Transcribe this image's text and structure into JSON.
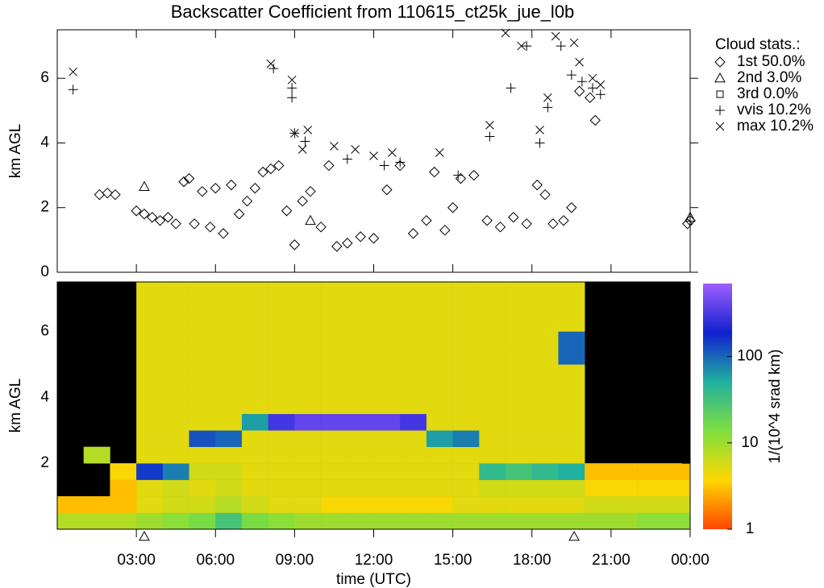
{
  "chart_data": [
    {
      "type": "scatter",
      "title": "Backscatter Coefficient from 110615_ct25k_jue_l0b",
      "ylabel": "km AGL",
      "xlim": [
        0,
        24
      ],
      "ylim": [
        0,
        7.5
      ],
      "yticks": [
        0,
        2,
        4,
        6
      ],
      "legend_title": "Cloud stats.:",
      "legend": "outside-right",
      "series": [
        {
          "name": "1st 50.0%",
          "color": "#000000",
          "marker": "diamond",
          "x": [
            1.6,
            1.9,
            2.2,
            3.0,
            3.3,
            3.6,
            3.9,
            4.2,
            4.5,
            4.8,
            5.0,
            5.2,
            5.5,
            5.8,
            6.0,
            6.3,
            6.6,
            6.9,
            7.2,
            7.5,
            7.8,
            8.1,
            8.4,
            8.7,
            9.0,
            9.3,
            9.6,
            10.0,
            10.3,
            10.6,
            11.0,
            11.5,
            12.0,
            12.5,
            13.0,
            13.5,
            14.0,
            14.3,
            14.7,
            15.0,
            15.3,
            15.8,
            16.3,
            16.8,
            17.3,
            17.8,
            18.2,
            18.5,
            18.8,
            19.2,
            19.5,
            19.8,
            20.2,
            20.4,
            23.9,
            24.0
          ],
          "values": [
            2.4,
            2.45,
            2.4,
            1.9,
            1.8,
            1.7,
            1.6,
            1.7,
            1.5,
            2.8,
            2.9,
            1.5,
            2.5,
            1.4,
            2.6,
            1.2,
            2.7,
            1.8,
            2.2,
            2.6,
            3.1,
            3.2,
            3.3,
            1.9,
            0.85,
            2.2,
            2.5,
            1.4,
            3.3,
            0.8,
            0.9,
            1.1,
            1.05,
            2.55,
            3.3,
            1.2,
            1.6,
            3.1,
            1.3,
            2.0,
            2.9,
            3.0,
            1.6,
            1.4,
            1.7,
            1.5,
            2.7,
            2.4,
            1.5,
            1.6,
            2.0,
            5.6,
            5.4,
            4.7,
            1.5,
            1.6
          ]
        },
        {
          "name": "2nd 3.0%",
          "color": "#000000",
          "marker": "triangle",
          "x": [
            3.3,
            9.6,
            24.0
          ],
          "values": [
            2.65,
            1.6,
            1.7
          ]
        },
        {
          "name": "3rd 0.0%",
          "color": "#000000",
          "marker": "square",
          "x": [],
          "values": []
        },
        {
          "name": "vvis 10.2%",
          "color": "#000000",
          "marker": "plus",
          "x": [
            0.6,
            8.2,
            8.9,
            8.9,
            9.0,
            9.4,
            11.0,
            12.4,
            13.0,
            15.2,
            16.4,
            17.2,
            17.8,
            18.3,
            18.6,
            19.1,
            19.5,
            19.9,
            20.3,
            20.6
          ],
          "values": [
            5.65,
            6.3,
            5.4,
            5.7,
            4.3,
            4.05,
            3.5,
            3.3,
            3.4,
            3.0,
            4.2,
            5.7,
            7.0,
            4.0,
            5.1,
            7.0,
            6.1,
            5.9,
            5.7,
            5.5
          ]
        },
        {
          "name": "max 10.2%",
          "color": "#000000",
          "marker": "cross",
          "x": [
            0.6,
            8.1,
            8.9,
            9.0,
            9.3,
            9.5,
            10.5,
            11.3,
            12.0,
            12.7,
            14.5,
            16.4,
            17.0,
            17.6,
            18.3,
            18.6,
            18.9,
            19.6,
            19.8,
            20.3,
            20.6
          ],
          "values": [
            6.2,
            6.45,
            5.95,
            4.3,
            3.8,
            4.4,
            3.9,
            3.8,
            3.6,
            3.7,
            3.7,
            4.55,
            7.4,
            7.0,
            4.4,
            5.4,
            7.3,
            7.1,
            6.5,
            6.0,
            5.8
          ]
        }
      ]
    },
    {
      "type": "heatmap",
      "ylabel": "km AGL",
      "xlabel": "time (UTC)",
      "xlim": [
        0,
        24
      ],
      "ylim": [
        0,
        7.5
      ],
      "yticks": [
        2,
        4,
        6
      ],
      "xticks": [
        {
          "value": 3,
          "label": "03:00"
        },
        {
          "value": 6,
          "label": "06:00"
        },
        {
          "value": 9,
          "label": "09:00"
        },
        {
          "value": 12,
          "label": "12:00"
        },
        {
          "value": 15,
          "label": "15:00"
        },
        {
          "value": 18,
          "label": "18:00"
        },
        {
          "value": 21,
          "label": "21:00"
        },
        {
          "value": 24,
          "label": "00:00"
        }
      ],
      "x_edges": [
        0,
        1,
        2,
        3,
        4,
        5,
        6,
        7,
        8,
        9,
        10,
        11,
        12,
        13,
        14,
        15,
        16,
        17,
        18,
        19,
        20,
        21,
        22,
        23,
        24
      ],
      "y_edges": [
        0,
        0.5,
        1,
        1.5,
        2,
        2.5,
        3,
        3.5,
        4,
        4.5,
        5,
        5.5,
        6,
        6.5,
        7,
        7.5
      ],
      "z": [
        [
          8,
          8,
          8,
          10,
          12,
          15,
          30,
          15,
          12,
          10,
          10,
          10,
          10,
          10,
          10,
          10,
          10,
          10,
          10,
          10,
          10,
          10,
          12,
          12
        ],
        [
          3,
          3,
          3,
          5,
          6,
          6,
          8,
          6,
          5,
          5,
          4,
          4,
          4,
          4,
          4,
          5,
          5,
          5,
          5,
          5,
          6,
          6,
          6,
          6
        ],
        [
          null,
          null,
          3,
          5,
          6,
          5,
          6,
          5,
          5,
          5,
          5,
          5,
          5,
          5,
          5,
          5,
          6,
          6,
          6,
          6,
          4,
          4,
          4,
          4
        ],
        [
          null,
          null,
          4,
          150,
          80,
          6,
          6,
          5,
          5,
          5,
          5,
          5,
          5,
          5,
          5,
          5,
          40,
          30,
          40,
          50,
          3,
          3,
          3,
          3
        ],
        [
          null,
          8,
          null,
          5,
          5,
          5,
          5,
          5,
          5,
          5,
          5,
          5,
          5,
          5,
          5,
          5,
          5,
          5,
          5,
          5,
          null,
          null,
          null,
          null
        ],
        [
          null,
          null,
          null,
          5,
          5,
          120,
          100,
          5,
          5,
          5,
          5,
          5,
          5,
          5,
          60,
          80,
          5,
          5,
          5,
          5,
          null,
          null,
          null,
          null
        ],
        [
          null,
          null,
          null,
          5,
          5,
          5,
          5,
          60,
          300,
          400,
          400,
          400,
          400,
          300,
          5,
          5,
          5,
          5,
          5,
          5,
          null,
          null,
          null,
          null
        ],
        [
          null,
          null,
          null,
          5,
          5,
          5,
          5,
          5,
          5,
          5,
          5,
          5,
          5,
          5,
          5,
          5,
          5,
          5,
          5,
          5,
          null,
          null,
          null,
          null
        ],
        [
          null,
          null,
          null,
          5,
          5,
          5,
          5,
          5,
          5,
          5,
          5,
          5,
          5,
          5,
          5,
          5,
          5,
          5,
          5,
          5,
          null,
          null,
          null,
          null
        ],
        [
          null,
          null,
          null,
          5,
          5,
          5,
          5,
          5,
          5,
          5,
          5,
          5,
          5,
          5,
          5,
          5,
          5,
          5,
          5,
          5,
          null,
          null,
          null,
          null
        ],
        [
          null,
          null,
          null,
          5,
          5,
          5,
          5,
          5,
          5,
          5,
          5,
          5,
          5,
          5,
          5,
          5,
          5,
          5,
          5,
          100,
          null,
          null,
          null,
          null
        ],
        [
          null,
          null,
          null,
          5,
          5,
          5,
          5,
          5,
          5,
          5,
          5,
          5,
          5,
          5,
          5,
          5,
          5,
          5,
          5,
          100,
          null,
          null,
          null,
          null
        ],
        [
          null,
          null,
          null,
          5,
          5,
          5,
          5,
          5,
          5,
          5,
          5,
          5,
          5,
          5,
          5,
          5,
          5,
          5,
          5,
          5,
          null,
          null,
          null,
          null
        ],
        [
          null,
          null,
          null,
          5,
          5,
          5,
          5,
          5,
          5,
          5,
          5,
          5,
          5,
          5,
          5,
          5,
          5,
          5,
          5,
          5,
          null,
          null,
          null,
          null
        ],
        [
          null,
          null,
          null,
          5,
          5,
          5,
          5,
          5,
          5,
          5,
          5,
          5,
          5,
          5,
          5,
          5,
          5,
          5,
          5,
          5,
          null,
          null,
          null,
          null
        ]
      ],
      "zlim": [
        1,
        700
      ],
      "zscale": "log",
      "zticks": [
        1,
        10,
        100
      ],
      "zlabel": "1/(10^4 srad km)",
      "colorscale": [
        "#ff4500",
        "#ffd700",
        "#7fdf3f",
        "#20b0a0",
        "#1020d0",
        "#a060ff"
      ],
      "background": "#000000",
      "markers_x": [
        3.3,
        19.6
      ]
    }
  ]
}
